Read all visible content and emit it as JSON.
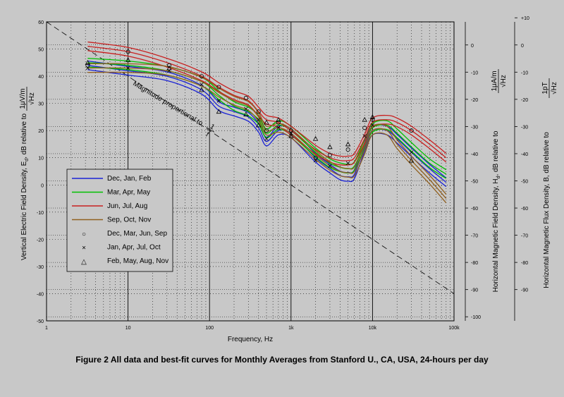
{
  "chart_data": {
    "type": "line",
    "title": "",
    "caption": "Figure 2  All data and best-fit curves for Monthly Averages from Stanford U., CA, USA, 24-hours per day",
    "xlabel": "Frequency,  Hz",
    "x_scale": "log",
    "xlim": [
      1,
      100000
    ],
    "x_ticks": [
      1,
      10,
      100,
      1000,
      10000,
      100000
    ],
    "x_tick_labels": [
      "1",
      "10",
      "100",
      "1k",
      "10k",
      "100k"
    ],
    "left_axis": {
      "label_parts": [
        "Vertical Electric Field Density,  E",
        "d",
        ", dB relative to "
      ],
      "unit_num": "1μV/m",
      "unit_den": "√Hz",
      "ylim": [
        -50,
        60
      ],
      "ticks": [
        60,
        50,
        40,
        30,
        20,
        10,
        0,
        -10,
        -20,
        -30,
        -40,
        -50
      ],
      "tick_labels": [
        "60",
        "50",
        "40",
        "30",
        "20",
        "10",
        "0",
        "-10",
        "-20",
        "-30",
        "-40",
        "-50"
      ]
    },
    "mid_axis": {
      "label_parts": [
        "Horizontal Magnetic Field Density,  H",
        "d",
        ", dB relative to "
      ],
      "unit_num": "1μA/m",
      "unit_den": "√Hz",
      "ylim": [
        -100,
        10
      ],
      "ticks": [
        0,
        -10,
        -20,
        -30,
        -40,
        -50,
        -60,
        -70,
        -80,
        -90,
        -100
      ],
      "tick_labels": [
        "0",
        "-10",
        "-20",
        "-30",
        "-40",
        "-50",
        "-60",
        "-70",
        "-80",
        "-90",
        "-100"
      ]
    },
    "right_axis": {
      "label_parts": [
        "Horizontal Magnetic Flux Density,  B, dB relative to "
      ],
      "unit_num": "1pT",
      "unit_den": "√Hz",
      "ylim": [
        -100,
        10
      ],
      "ticks": [
        10,
        0,
        -10,
        -20,
        -30,
        -40,
        -50,
        -60,
        -70,
        -80,
        -90
      ],
      "tick_labels": [
        "+10",
        "0",
        "-10",
        "-20",
        "-30",
        "-40",
        "-50",
        "-60",
        "-70",
        "-80",
        "-90"
      ]
    },
    "annotation": {
      "text": "Magnitude proportional to ",
      "frac_num": "1",
      "frac_den": "f",
      "line": {
        "x": [
          1,
          100000
        ],
        "y": [
          60,
          -40
        ]
      }
    },
    "series": [
      {
        "name": "Dec, Jan, Feb",
        "color": "#1a22d6",
        "x": [
          3.2,
          10,
          30,
          80,
          130,
          200,
          300,
          400,
          500,
          700,
          1000,
          2000,
          3000,
          4000,
          5000,
          6000,
          8000,
          10000,
          15000,
          20000,
          30000,
          50000,
          80000
        ],
        "y": [
          44,
          42,
          40,
          35,
          29,
          27,
          25,
          21,
          16,
          20,
          19,
          10,
          6,
          3.5,
          3,
          4,
          14,
          20,
          20,
          17,
          12,
          6,
          1
        ]
      },
      {
        "name": "Mar, Apr, May",
        "color": "#00c000",
        "x": [
          3.2,
          10,
          30,
          80,
          130,
          200,
          300,
          400,
          500,
          700,
          1000,
          2000,
          3000,
          4000,
          5000,
          6000,
          8000,
          10000,
          15000,
          20000,
          30000,
          50000,
          80000
        ],
        "y": [
          45,
          44,
          42,
          38,
          33,
          29,
          27,
          24,
          19,
          22,
          20,
          12,
          8,
          6.5,
          6,
          7,
          15,
          21,
          22,
          19,
          14,
          8,
          4
        ]
      },
      {
        "name": "Jun, Jul, Aug",
        "color": "#c82020",
        "x": [
          3.2,
          10,
          30,
          80,
          130,
          200,
          300,
          400,
          500,
          700,
          1000,
          2000,
          3000,
          4000,
          5000,
          6000,
          8000,
          10000,
          15000,
          20000,
          30000,
          50000,
          80000
        ],
        "y": [
          51,
          49,
          45,
          40,
          36,
          33,
          31,
          27,
          24,
          23,
          20,
          13,
          10,
          9,
          9,
          10,
          17,
          23,
          24,
          23,
          20,
          15,
          10
        ]
      },
      {
        "name": "Sep, Oct, Nov",
        "color": "#906020",
        "x": [
          3.2,
          10,
          30,
          80,
          130,
          200,
          300,
          400,
          500,
          700,
          1000,
          2000,
          3000,
          4000,
          5000,
          6000,
          8000,
          10000,
          15000,
          20000,
          30000,
          50000,
          80000
        ],
        "y": [
          43,
          43,
          42,
          38,
          34,
          31,
          29,
          25,
          20,
          21,
          19,
          11,
          7,
          5,
          4.5,
          5,
          13,
          20,
          20,
          15,
          9,
          2,
          -5
        ]
      }
    ],
    "marker_legend": [
      {
        "name": "Dec, Mar, Jun, Sep",
        "marker": "○"
      },
      {
        "name": "Jan, Apr, Jul, Oct",
        "marker": "×"
      },
      {
        "name": "Feb, May, Aug, Nov",
        "marker": "△"
      }
    ],
    "markers": {
      "x": [
        3.2,
        10,
        32,
        80,
        130,
        280,
        400,
        500,
        700,
        1000,
        2000,
        3000,
        5000,
        8000,
        10000,
        30000
      ],
      "y": [
        [
          44,
          49,
          44,
          40,
          36,
          32,
          27,
          20,
          23,
          20,
          10,
          11,
          13,
          21,
          24,
          20
        ],
        [
          43,
          43,
          42,
          37,
          31,
          28,
          24,
          17,
          21,
          19,
          9,
          7,
          8,
          18,
          22,
          12
        ],
        [
          45,
          46,
          43,
          35,
          27,
          26,
          22,
          23,
          24,
          18,
          17,
          14,
          15,
          24,
          25,
          9
        ]
      ]
    }
  }
}
